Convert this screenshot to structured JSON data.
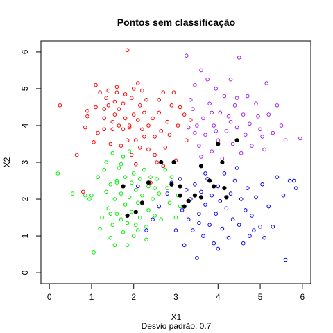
{
  "chart_data": {
    "type": "scatter",
    "title": "Pontos sem classificação",
    "xlabel": "X1",
    "ylabel": "X2",
    "subtitle": "Desvio padrão:  0.7",
    "xlim": [
      -0.2,
      6.2
    ],
    "ylim": [
      -0.3,
      6.3
    ],
    "xticks": [
      0,
      1,
      2,
      3,
      4,
      5,
      6
    ],
    "yticks": [
      0,
      1,
      2,
      3,
      4,
      5,
      6
    ],
    "grid": false,
    "legend": "none",
    "series": [
      {
        "color": "#ff0000",
        "marker": "open-circle",
        "points": [
          [
            0.25,
            4.55
          ],
          [
            0.65,
            3.2
          ],
          [
            0.8,
            2.2
          ],
          [
            0.85,
            3.95
          ],
          [
            0.9,
            4.25
          ],
          [
            0.9,
            4.4
          ],
          [
            1.05,
            3.55
          ],
          [
            1.1,
            5.1
          ],
          [
            1.1,
            4.5
          ],
          [
            1.15,
            3.8
          ],
          [
            1.2,
            4.9
          ],
          [
            1.3,
            3.9
          ],
          [
            1.3,
            4.2
          ],
          [
            1.35,
            4.75
          ],
          [
            1.4,
            4.95
          ],
          [
            1.4,
            4.55
          ],
          [
            1.45,
            3.5
          ],
          [
            1.5,
            3.9
          ],
          [
            1.55,
            4.3
          ],
          [
            1.55,
            4.65
          ],
          [
            1.6,
            4.9
          ],
          [
            1.6,
            5.05
          ],
          [
            1.65,
            4.45
          ],
          [
            1.65,
            4.0
          ],
          [
            1.7,
            3.45
          ],
          [
            1.75,
            3.9
          ],
          [
            1.75,
            4.6
          ],
          [
            1.8,
            4.85
          ],
          [
            1.8,
            4.2
          ],
          [
            1.85,
            3.6
          ],
          [
            1.9,
            4.0
          ],
          [
            1.95,
            4.75
          ],
          [
            1.95,
            3.2
          ],
          [
            2.0,
            4.3
          ],
          [
            2.0,
            5.0
          ],
          [
            2.05,
            3.6
          ],
          [
            2.05,
            2.95
          ],
          [
            2.1,
            4.15
          ],
          [
            2.1,
            5.15
          ],
          [
            2.15,
            3.4
          ],
          [
            2.15,
            4.55
          ],
          [
            2.2,
            3.9
          ],
          [
            2.25,
            4.35
          ],
          [
            2.25,
            3.7
          ],
          [
            2.3,
            4.7
          ],
          [
            2.35,
            3.35
          ],
          [
            2.35,
            4.0
          ],
          [
            2.4,
            2.45
          ],
          [
            2.45,
            4.2
          ],
          [
            2.5,
            3.7
          ],
          [
            2.55,
            3.0
          ],
          [
            2.6,
            4.35
          ],
          [
            2.65,
            3.85
          ],
          [
            2.7,
            4.9
          ],
          [
            2.75,
            3.4
          ],
          [
            2.8,
            4.1
          ],
          [
            2.85,
            3.75
          ],
          [
            2.9,
            4.55
          ],
          [
            3.0,
            3.05
          ],
          [
            3.05,
            4.0
          ],
          [
            3.1,
            4.5
          ],
          [
            3.2,
            4.3
          ],
          [
            3.25,
            3.6
          ],
          [
            3.35,
            4.15
          ],
          [
            2.5,
            3.2
          ],
          [
            1.9,
            3.95
          ],
          [
            2.7,
            2.9
          ],
          [
            1.3,
            4.45
          ],
          [
            2.95,
            4.9
          ],
          [
            1.85,
            6.05
          ],
          [
            2.6,
            4.7
          ],
          [
            1.5,
            4.1
          ],
          [
            2.2,
            4.95
          ]
        ]
      },
      {
        "color": "#00ee00",
        "marker": "open-circle",
        "points": [
          [
            0.2,
            2.7
          ],
          [
            0.55,
            2.15
          ],
          [
            0.85,
            2.1
          ],
          [
            0.95,
            2.0
          ],
          [
            1.05,
            0.55
          ],
          [
            1.15,
            2.6
          ],
          [
            1.2,
            1.2
          ],
          [
            1.25,
            1.5
          ],
          [
            1.3,
            2.8
          ],
          [
            1.35,
            3.0
          ],
          [
            1.35,
            2.2
          ],
          [
            1.4,
            1.75
          ],
          [
            1.45,
            0.95
          ],
          [
            1.45,
            2.4
          ],
          [
            1.5,
            1.3
          ],
          [
            1.5,
            3.25
          ],
          [
            1.55,
            2.0
          ],
          [
            1.55,
            0.75
          ],
          [
            1.6,
            1.6
          ],
          [
            1.6,
            2.5
          ],
          [
            1.65,
            2.85
          ],
          [
            1.7,
            1.45
          ],
          [
            1.7,
            2.15
          ],
          [
            1.75,
            1.1
          ],
          [
            1.75,
            3.15
          ],
          [
            1.8,
            1.85
          ],
          [
            1.8,
            2.6
          ],
          [
            1.85,
            0.75
          ],
          [
            1.85,
            1.35
          ],
          [
            1.9,
            2.05
          ],
          [
            1.9,
            3.3
          ],
          [
            1.95,
            1.65
          ],
          [
            1.95,
            2.45
          ],
          [
            2.0,
            1.0
          ],
          [
            2.0,
            2.7
          ],
          [
            2.05,
            1.3
          ],
          [
            2.05,
            2.25
          ],
          [
            2.1,
            1.9
          ],
          [
            2.15,
            2.55
          ],
          [
            2.15,
            1.5
          ],
          [
            2.2,
            2.1
          ],
          [
            2.25,
            2.8
          ],
          [
            2.3,
            1.25
          ],
          [
            2.3,
            0.9
          ],
          [
            2.35,
            2.35
          ],
          [
            2.35,
            1.7
          ],
          [
            2.4,
            2.6
          ],
          [
            2.45,
            2.0
          ],
          [
            2.5,
            1.55
          ],
          [
            2.55,
            2.55
          ],
          [
            2.6,
            2.15
          ],
          [
            2.65,
            1.45
          ],
          [
            2.75,
            2.8
          ],
          [
            2.8,
            2.3
          ],
          [
            2.85,
            1.9
          ],
          [
            2.9,
            2.6
          ],
          [
            3.0,
            1.5
          ],
          [
            3.05,
            2.1
          ],
          [
            3.1,
            1.8
          ],
          [
            1.45,
            1.6
          ],
          [
            2.1,
            1.15
          ],
          [
            1.6,
            2.45
          ],
          [
            2.5,
            2.3
          ],
          [
            1.7,
            2.95
          ],
          [
            1.0,
            2.1
          ]
        ]
      },
      {
        "color": "#0000ee",
        "marker": "open-circle",
        "points": [
          [
            2.1,
            2.35
          ],
          [
            2.3,
            1.15
          ],
          [
            2.45,
            1.45
          ],
          [
            2.6,
            1.8
          ],
          [
            2.8,
            2.15
          ],
          [
            2.9,
            2.45
          ],
          [
            3.0,
            1.15
          ],
          [
            3.1,
            2.55
          ],
          [
            3.15,
            1.7
          ],
          [
            3.2,
            0.75
          ],
          [
            3.25,
            2.25
          ],
          [
            3.3,
            1.45
          ],
          [
            3.35,
            2.0
          ],
          [
            3.4,
            1.15
          ],
          [
            3.45,
            2.4
          ],
          [
            3.5,
            0.4
          ],
          [
            3.55,
            1.6
          ],
          [
            3.6,
            2.2
          ],
          [
            3.65,
            1.0
          ],
          [
            3.7,
            1.85
          ],
          [
            3.75,
            2.55
          ],
          [
            3.8,
            1.3
          ],
          [
            3.85,
            2.1
          ],
          [
            3.9,
            0.8
          ],
          [
            3.95,
            1.6
          ],
          [
            4.0,
            2.35
          ],
          [
            4.0,
            0.65
          ],
          [
            4.05,
            1.95
          ],
          [
            4.1,
            1.2
          ],
          [
            4.15,
            2.7
          ],
          [
            4.2,
            1.75
          ],
          [
            4.25,
            0.95
          ],
          [
            4.3,
            2.15
          ],
          [
            4.35,
            1.45
          ],
          [
            4.4,
            2.5
          ],
          [
            4.5,
            1.3
          ],
          [
            4.55,
            2.0
          ],
          [
            4.6,
            0.8
          ],
          [
            4.65,
            1.7
          ],
          [
            4.7,
            2.3
          ],
          [
            4.75,
            1.0
          ],
          [
            4.8,
            1.55
          ],
          [
            4.9,
            2.05
          ],
          [
            5.0,
            1.25
          ],
          [
            5.05,
            2.4
          ],
          [
            5.1,
            0.95
          ],
          [
            5.2,
            1.8
          ],
          [
            5.3,
            1.25
          ],
          [
            5.4,
            2.6
          ],
          [
            5.55,
            2.1
          ],
          [
            5.6,
            0.35
          ],
          [
            5.7,
            2.5
          ],
          [
            5.8,
            2.5
          ],
          [
            5.85,
            2.3
          ],
          [
            3.7,
            2.7
          ],
          [
            4.85,
            1.15
          ],
          [
            3.55,
            1.35
          ],
          [
            4.45,
            2.85
          ]
        ]
      },
      {
        "color": "#a020f0",
        "marker": "open-circle",
        "points": [
          [
            3.25,
            5.9
          ],
          [
            3.35,
            4.7
          ],
          [
            3.4,
            4.45
          ],
          [
            3.45,
            5.1
          ],
          [
            3.5,
            4.0
          ],
          [
            3.55,
            3.45
          ],
          [
            3.6,
            5.5
          ],
          [
            3.65,
            4.2
          ],
          [
            3.7,
            3.75
          ],
          [
            3.75,
            5.25
          ],
          [
            3.8,
            4.6
          ],
          [
            3.85,
            3.3
          ],
          [
            3.9,
            4.0
          ],
          [
            3.95,
            5.0
          ],
          [
            4.0,
            3.6
          ],
          [
            4.05,
            4.35
          ],
          [
            4.1,
            3.1
          ],
          [
            4.15,
            4.8
          ],
          [
            4.2,
            3.85
          ],
          [
            4.25,
            4.25
          ],
          [
            4.3,
            5.25
          ],
          [
            4.35,
            3.5
          ],
          [
            4.4,
            4.55
          ],
          [
            4.45,
            3.95
          ],
          [
            4.5,
            5.85
          ],
          [
            4.55,
            3.25
          ],
          [
            4.6,
            4.3
          ],
          [
            4.65,
            3.75
          ],
          [
            4.7,
            4.8
          ],
          [
            4.75,
            4.05
          ],
          [
            4.8,
            3.45
          ],
          [
            4.9,
            4.6
          ],
          [
            5.0,
            3.9
          ],
          [
            5.1,
            3.35
          ],
          [
            5.2,
            4.3
          ],
          [
            5.3,
            3.8
          ],
          [
            5.4,
            4.55
          ],
          [
            5.5,
            4.0
          ],
          [
            5.6,
            3.6
          ],
          [
            5.95,
            3.65
          ],
          [
            5.15,
            5.15
          ],
          [
            3.3,
            3.95
          ],
          [
            4.95,
            4.25
          ],
          [
            3.6,
            3.15
          ],
          [
            4.45,
            4.75
          ],
          [
            3.85,
            4.35
          ],
          [
            5.05,
            3.7
          ],
          [
            3.95,
            3.85
          ],
          [
            4.3,
            4.1
          ],
          [
            3.45,
            3.8
          ]
        ]
      },
      {
        "color": "#000000",
        "marker": "filled-circle",
        "points": [
          [
            1.75,
            2.35
          ],
          [
            1.85,
            1.55
          ],
          [
            2.05,
            1.65
          ],
          [
            2.2,
            1.9
          ],
          [
            2.35,
            2.45
          ],
          [
            2.65,
            3.0
          ],
          [
            2.95,
            3.0
          ],
          [
            2.9,
            2.4
          ],
          [
            3.1,
            2.1
          ],
          [
            3.2,
            1.8
          ],
          [
            3.3,
            1.95
          ],
          [
            3.45,
            2.1
          ],
          [
            3.6,
            2.05
          ],
          [
            3.6,
            2.9
          ],
          [
            3.9,
            2.35
          ],
          [
            4.0,
            3.5
          ],
          [
            4.1,
            3.0
          ],
          [
            4.15,
            2.3
          ],
          [
            4.2,
            2.05
          ],
          [
            4.45,
            3.6
          ],
          [
            3.1,
            2.35
          ],
          [
            3.8,
            2.5
          ]
        ]
      }
    ]
  }
}
